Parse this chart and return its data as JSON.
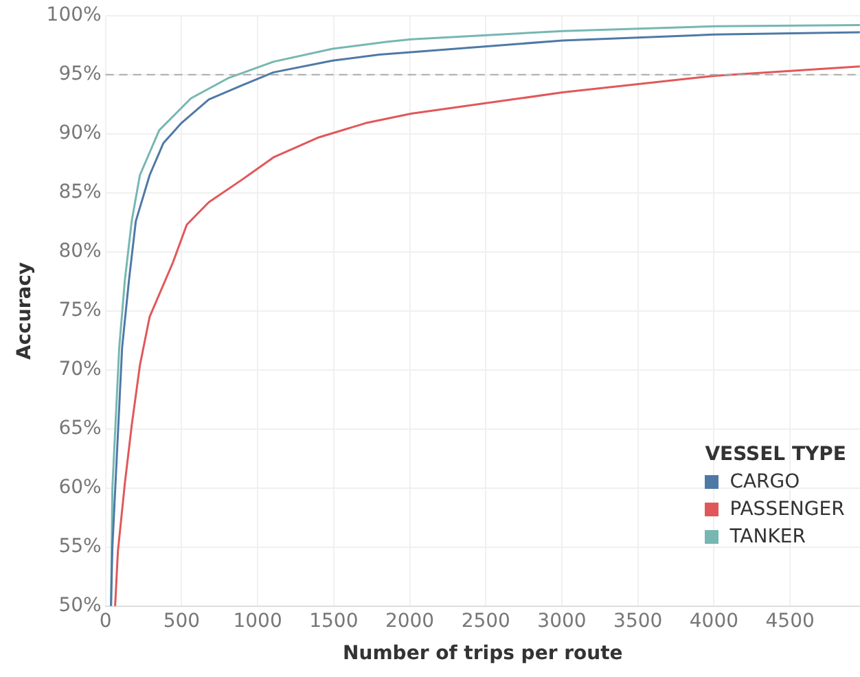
{
  "chart_data": {
    "type": "line",
    "xlabel": "Number of trips per route",
    "ylabel": "Accuracy",
    "legend_title": "VESSEL TYPE",
    "legend": "bottom right",
    "grid": true,
    "marker": "none",
    "line_style": "solid",
    "xlim": [
      0,
      4960
    ],
    "xticks": [
      0,
      500,
      1000,
      1500,
      2000,
      2500,
      3000,
      3500,
      4000,
      4500
    ],
    "ylim": [
      50,
      100
    ],
    "yticks": [
      {
        "value": 50,
        "label": "50%"
      },
      {
        "value": 55,
        "label": "55%"
      },
      {
        "value": 60,
        "label": "60%"
      },
      {
        "value": 65,
        "label": "65%"
      },
      {
        "value": 70,
        "label": "70%"
      },
      {
        "value": 75,
        "label": "75%"
      },
      {
        "value": 80,
        "label": "80%"
      },
      {
        "value": 85,
        "label": "85%"
      },
      {
        "value": 90,
        "label": "90%"
      },
      {
        "value": 95,
        "label": "95%"
      },
      {
        "value": 100,
        "label": "100%"
      }
    ],
    "ref_lines": [
      {
        "axis": "y",
        "value": 95,
        "label": null,
        "color": "#aaaaaa",
        "line_style": "dashed"
      }
    ],
    "series": [
      {
        "name": "CARGO",
        "color": "#4e79a7",
        "x": [
          36,
          45,
          109,
          154,
          199,
          290,
          380,
          498,
          679,
          896,
          1104,
          1493,
          1801,
          2009,
          3005,
          4000,
          4959
        ],
        "values": [
          50,
          55,
          71.9,
          77.6,
          82.6,
          86.5,
          89.2,
          90.9,
          92.9,
          94.1,
          95.2,
          96.2,
          96.7,
          96.9,
          97.9,
          98.4,
          98.6
        ]
      },
      {
        "name": "PASSENGER",
        "color": "#e15759",
        "x": [
          63,
          81,
          127,
          172,
          226,
          290,
          443,
          534,
          679,
          896,
          1104,
          1403,
          1710,
          2009,
          3005,
          4000,
          4959
        ],
        "values": [
          50,
          54.6,
          60.4,
          65.3,
          70.4,
          74.5,
          79.1,
          82.3,
          84.2,
          86.1,
          88,
          89.7,
          90.9,
          91.7,
          93.5,
          94.9,
          95.7
        ]
      },
      {
        "name": "TANKER",
        "color": "#76b7b2",
        "x": [
          36,
          45,
          90,
          127,
          172,
          226,
          353,
          561,
          805,
          1104,
          1493,
          1855,
          2009,
          3005,
          4000,
          4959
        ],
        "values": [
          50,
          60,
          71.9,
          77.6,
          82.6,
          86.5,
          90.3,
          93,
          94.7,
          96.1,
          97.2,
          97.8,
          98,
          98.7,
          99.1,
          99.2
        ]
      }
    ]
  }
}
